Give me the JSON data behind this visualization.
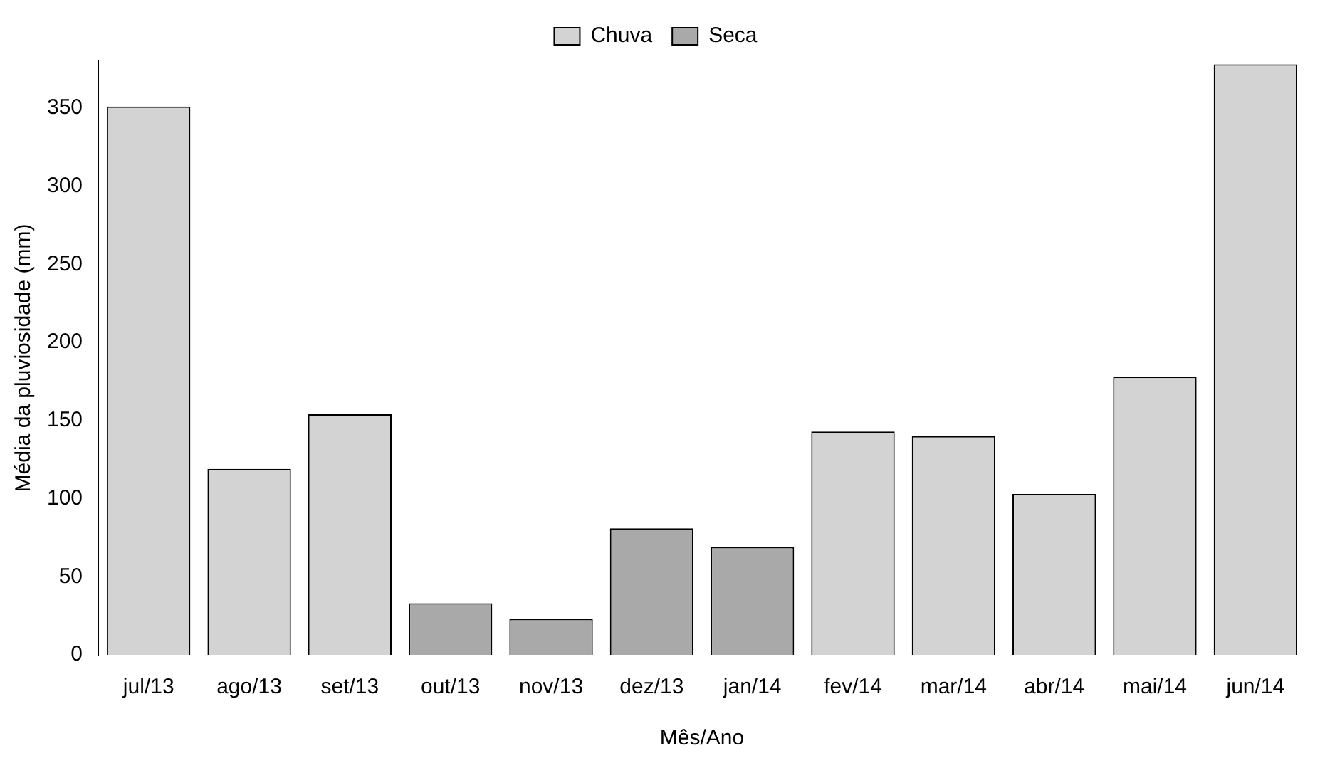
{
  "chart_data": {
    "type": "bar",
    "xlabel": "Mês/Ano",
    "ylabel": "Média da pluviosidade (mm)",
    "categories": [
      "jul/13",
      "ago/13",
      "set/13",
      "out/13",
      "nov/13",
      "dez/13",
      "jan/14",
      "fev/14",
      "mar/14",
      "abr/14",
      "mai/14",
      "jun/14"
    ],
    "series": [
      {
        "name": "Chuva",
        "color": "#d3d3d3",
        "values": [
          351,
          119,
          154,
          null,
          null,
          null,
          null,
          143,
          140,
          103,
          178,
          378
        ]
      },
      {
        "name": "Seca",
        "color": "#a9a9a9",
        "values": [
          null,
          null,
          null,
          33,
          23,
          81,
          69,
          null,
          null,
          null,
          null,
          null
        ]
      }
    ],
    "ylim": [
      0,
      380
    ],
    "yticks": [
      0,
      50,
      100,
      150,
      200,
      250,
      300,
      350
    ],
    "grid": false,
    "legend": "top"
  }
}
